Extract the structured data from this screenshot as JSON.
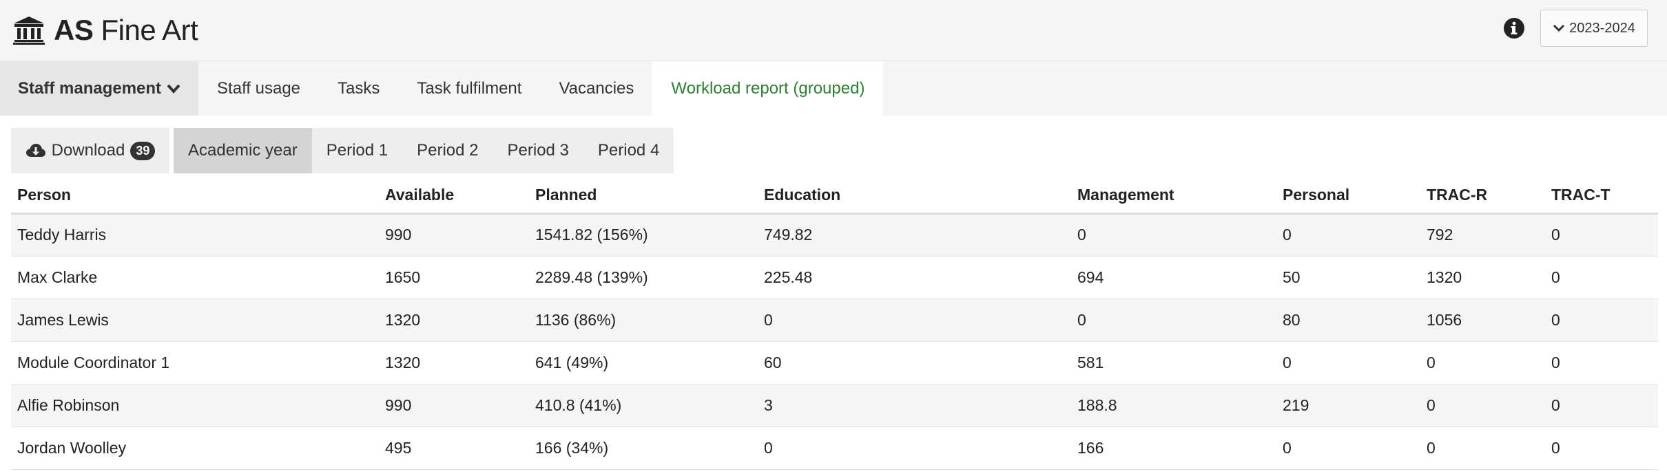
{
  "app": {
    "title_bold": "AS",
    "title_rest": " Fine Art"
  },
  "header": {
    "year_selector": "2023-2024"
  },
  "nav": {
    "dropdown_label": "Staff management",
    "items": [
      "Staff usage",
      "Tasks",
      "Task fulfilment",
      "Vacancies",
      "Workload report (grouped)"
    ],
    "active_index": 4
  },
  "toolbar": {
    "download_label": "Download",
    "download_count": "39",
    "periods": [
      "Academic year",
      "Period 1",
      "Period 2",
      "Period 3",
      "Period 4"
    ],
    "active_period": 0
  },
  "table": {
    "columns": [
      "Person",
      "Available",
      "Planned",
      "Education",
      "Management",
      "Personal",
      "TRAC-R",
      "TRAC-T"
    ],
    "rows": [
      [
        "Teddy Harris",
        "990",
        "1541.82 (156%)",
        "749.82",
        "0",
        "0",
        "792",
        "0"
      ],
      [
        "Max Clarke",
        "1650",
        "2289.48 (139%)",
        "225.48",
        "694",
        "50",
        "1320",
        "0"
      ],
      [
        "James Lewis",
        "1320",
        "1136 (86%)",
        "0",
        "0",
        "80",
        "1056",
        "0"
      ],
      [
        "Module Coordinator 1",
        "1320",
        "641 (49%)",
        "60",
        "581",
        "0",
        "0",
        "0"
      ],
      [
        "Alfie Robinson",
        "990",
        "410.8 (41%)",
        "3",
        "188.8",
        "219",
        "0",
        "0"
      ],
      [
        "Jordan Woolley",
        "495",
        "166 (34%)",
        "0",
        "166",
        "0",
        "0",
        "0"
      ]
    ]
  },
  "colors": {
    "active_tab_text": "#2e7d32",
    "header_bg": "#f5f5f5"
  }
}
